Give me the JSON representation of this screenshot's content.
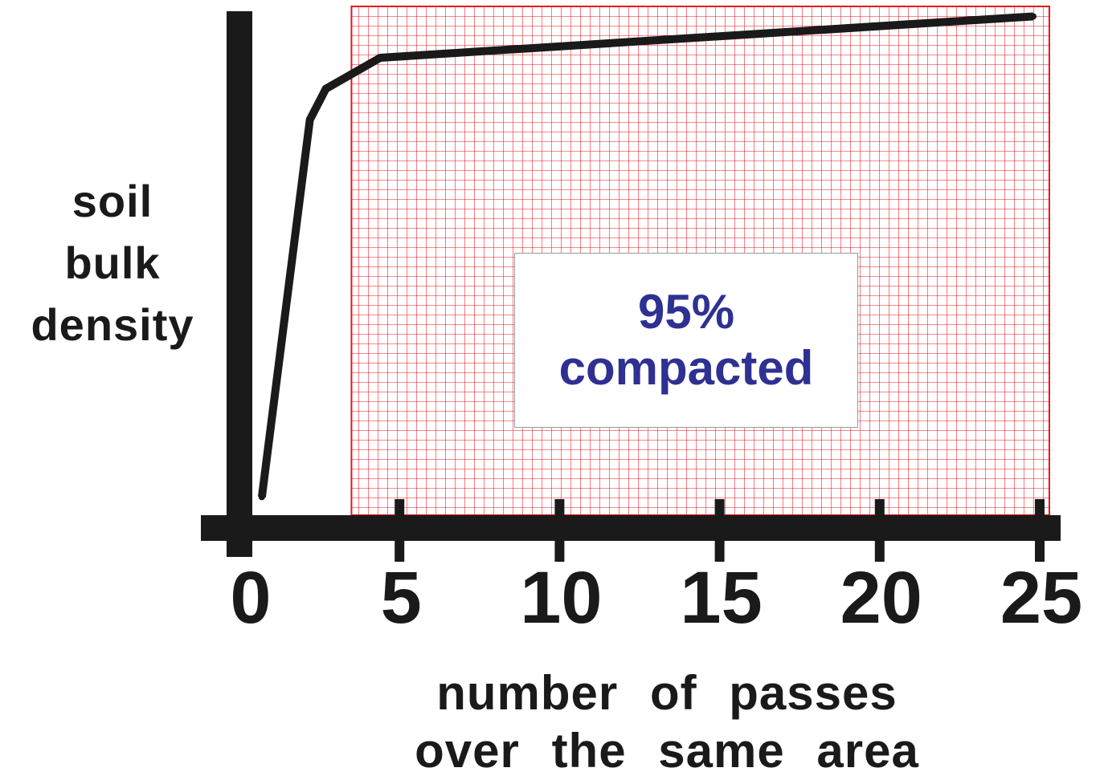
{
  "chart_data": {
    "type": "line",
    "ylabel_lines": [
      "soil",
      "bulk",
      "density"
    ],
    "xlabel_lines": [
      "number  of  passes",
      "over  the  same  area"
    ],
    "x_ticks": [
      "0",
      "5",
      "10",
      "15",
      "20",
      "25"
    ],
    "xlim": [
      0,
      25
    ],
    "ylim": [
      0,
      100
    ],
    "shaded_region": {
      "x_start": 3.5,
      "x_end": 25.3,
      "color": "#e8141b",
      "pattern": "grid"
    },
    "annotation_lines": [
      "95%",
      "compacted"
    ],
    "annotation_color": "#2e3192",
    "series": [
      {
        "x": [
          0.7,
          2.2,
          2.7,
          4.4,
          24.8
        ],
        "y": [
          6,
          79,
          85,
          91,
          99
        ],
        "color": "#1a1a1a"
      }
    ]
  }
}
